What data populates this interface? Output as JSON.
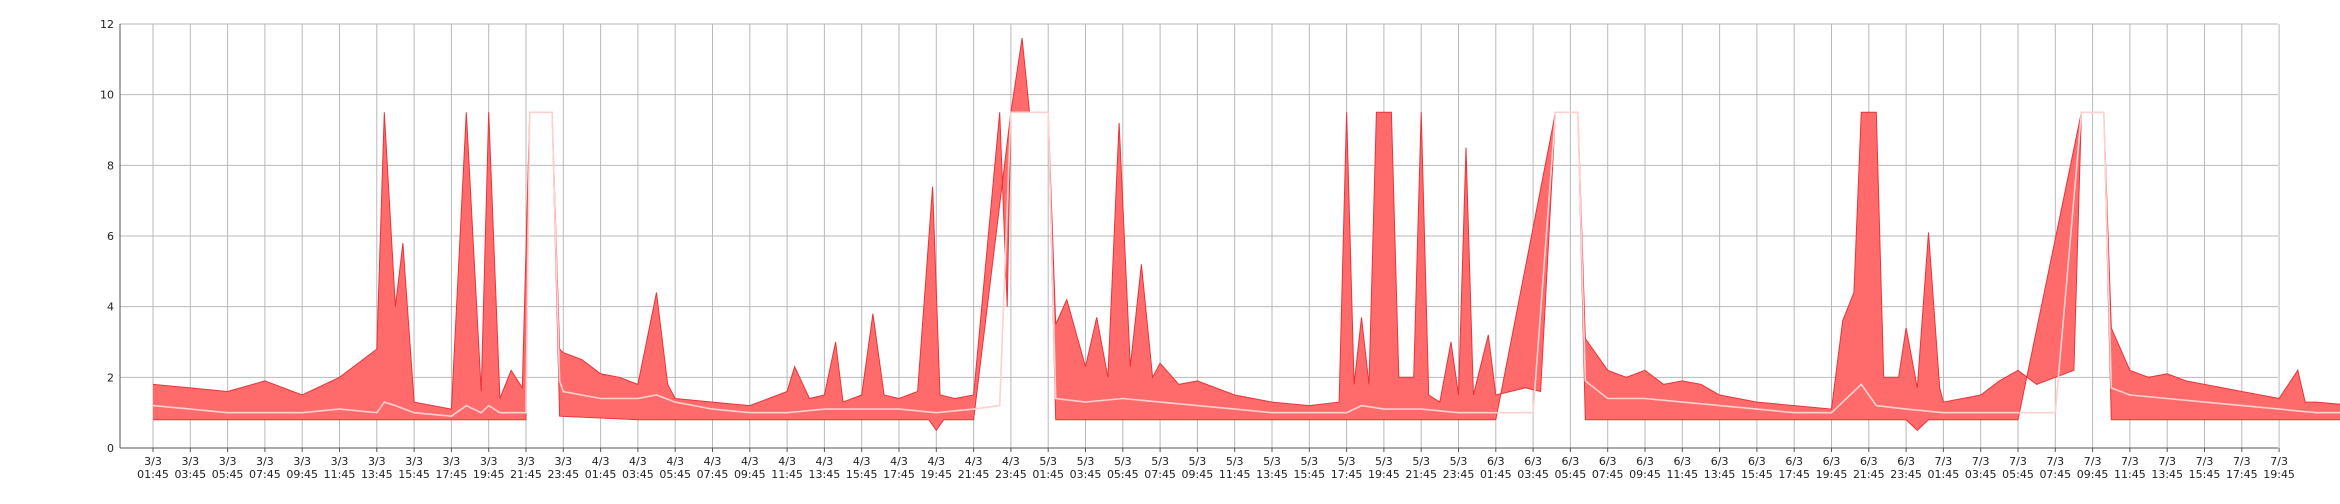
{
  "chart_data": {
    "type": "area",
    "title": "",
    "xlabel": "",
    "ylabel": "",
    "ylim": [
      0,
      12
    ],
    "y_ticks": [
      0,
      2,
      4,
      6,
      8,
      10,
      12
    ],
    "grid": true,
    "legend": "none",
    "colors": {
      "band_fill": "#ff6b6b",
      "band_stroke": "#e8343b",
      "mean_line": "#ffd0d0",
      "grid": "#b9b9b9",
      "axis": "#555555"
    },
    "x_ticks": [
      [
        "3/3",
        "01:45"
      ],
      [
        "3/3",
        "03:45"
      ],
      [
        "3/3",
        "05:45"
      ],
      [
        "3/3",
        "07:45"
      ],
      [
        "3/3",
        "09:45"
      ],
      [
        "3/3",
        "11:45"
      ],
      [
        "3/3",
        "13:45"
      ],
      [
        "3/3",
        "15:45"
      ],
      [
        "3/3",
        "17:45"
      ],
      [
        "3/3",
        "19:45"
      ],
      [
        "3/3",
        "21:45"
      ],
      [
        "3/3",
        "23:45"
      ],
      [
        "4/3",
        "01:45"
      ],
      [
        "4/3",
        "03:45"
      ],
      [
        "4/3",
        "05:45"
      ],
      [
        "4/3",
        "07:45"
      ],
      [
        "4/3",
        "09:45"
      ],
      [
        "4/3",
        "11:45"
      ],
      [
        "4/3",
        "13:45"
      ],
      [
        "4/3",
        "15:45"
      ],
      [
        "4/3",
        "17:45"
      ],
      [
        "4/3",
        "19:45"
      ],
      [
        "4/3",
        "21:45"
      ],
      [
        "4/3",
        "23:45"
      ],
      [
        "5/3",
        "01:45"
      ],
      [
        "5/3",
        "03:45"
      ],
      [
        "5/3",
        "05:45"
      ],
      [
        "5/3",
        "07:45"
      ],
      [
        "5/3",
        "09:45"
      ],
      [
        "5/3",
        "11:45"
      ],
      [
        "5/3",
        "13:45"
      ],
      [
        "5/3",
        "15:45"
      ],
      [
        "5/3",
        "17:45"
      ],
      [
        "5/3",
        "19:45"
      ],
      [
        "5/3",
        "21:45"
      ],
      [
        "5/3",
        "23:45"
      ],
      [
        "6/3",
        "01:45"
      ],
      [
        "6/3",
        "03:45"
      ],
      [
        "6/3",
        "05:45"
      ],
      [
        "6/3",
        "07:45"
      ],
      [
        "6/3",
        "09:45"
      ],
      [
        "6/3",
        "11:45"
      ],
      [
        "6/3",
        "13:45"
      ],
      [
        "6/3",
        "15:45"
      ],
      [
        "6/3",
        "17:45"
      ],
      [
        "6/3",
        "19:45"
      ],
      [
        "6/3",
        "21:45"
      ],
      [
        "6/3",
        "23:45"
      ],
      [
        "7/3",
        "01:45"
      ],
      [
        "7/3",
        "03:45"
      ],
      [
        "7/3",
        "05:45"
      ],
      [
        "7/3",
        "07:45"
      ],
      [
        "7/3",
        "09:45"
      ],
      [
        "7/3",
        "11:45"
      ],
      [
        "7/3",
        "13:45"
      ],
      [
        "7/3",
        "15:45"
      ],
      [
        "7/3",
        "17:45"
      ],
      [
        "7/3",
        "19:45"
      ]
    ],
    "series": [
      {
        "role": "max",
        "points": [
          [
            0,
            1.8
          ],
          [
            1,
            1.7
          ],
          [
            2,
            1.6
          ],
          [
            3,
            1.9
          ],
          [
            4,
            1.5
          ],
          [
            5,
            2.0
          ],
          [
            6,
            2.8
          ],
          [
            6.2,
            9.5
          ],
          [
            6.5,
            4.0
          ],
          [
            6.7,
            5.8
          ],
          [
            7,
            1.3
          ],
          [
            8,
            1.1
          ],
          [
            8.4,
            9.5
          ],
          [
            8.8,
            1.6
          ],
          [
            9,
            9.5
          ],
          [
            9.3,
            1.4
          ],
          [
            9.6,
            2.2
          ],
          [
            9.9,
            1.7
          ],
          [
            10.1,
            9.5
          ],
          [
            10.7,
            9.5
          ],
          [
            10.9,
            2.8
          ],
          [
            11,
            2.7
          ],
          [
            11.5,
            2.5
          ],
          [
            12,
            2.1
          ],
          [
            12.5,
            2.0
          ],
          [
            13,
            1.8
          ],
          [
            13.5,
            4.4
          ],
          [
            13.8,
            1.8
          ],
          [
            14,
            1.4
          ],
          [
            15,
            1.3
          ],
          [
            16,
            1.2
          ],
          [
            17,
            1.6
          ],
          [
            17.2,
            2.3
          ],
          [
            17.6,
            1.4
          ],
          [
            18,
            1.5
          ],
          [
            18.3,
            3.0
          ],
          [
            18.5,
            1.3
          ],
          [
            19,
            1.5
          ],
          [
            19.3,
            3.8
          ],
          [
            19.6,
            1.5
          ],
          [
            20,
            1.4
          ],
          [
            20.5,
            1.6
          ],
          [
            20.9,
            7.4
          ],
          [
            21.1,
            1.5
          ],
          [
            21.5,
            1.4
          ],
          [
            22,
            1.5
          ],
          [
            22.7,
            9.5
          ],
          [
            22.9,
            4.0
          ],
          [
            23.0,
            9.5
          ],
          [
            23.3,
            11.6
          ],
          [
            23.5,
            9.5
          ],
          [
            24.0,
            9.5
          ],
          [
            24.2,
            3.5
          ],
          [
            24.5,
            4.2
          ],
          [
            25,
            2.3
          ],
          [
            25.3,
            3.7
          ],
          [
            25.6,
            2.0
          ],
          [
            25.9,
            9.2
          ],
          [
            26.2,
            2.3
          ],
          [
            26.5,
            5.2
          ],
          [
            26.8,
            2.0
          ],
          [
            27,
            2.4
          ],
          [
            27.5,
            1.8
          ],
          [
            28,
            1.9
          ],
          [
            29,
            1.5
          ],
          [
            30,
            1.3
          ],
          [
            31,
            1.2
          ],
          [
            31.8,
            1.3
          ],
          [
            32.0,
            9.5
          ],
          [
            32.2,
            1.8
          ],
          [
            32.4,
            3.7
          ],
          [
            32.6,
            1.8
          ],
          [
            32.8,
            9.5
          ],
          [
            33.2,
            9.5
          ],
          [
            33.4,
            2.0
          ],
          [
            33.8,
            2.0
          ],
          [
            34.0,
            9.5
          ],
          [
            34.2,
            1.5
          ],
          [
            34.5,
            1.3
          ],
          [
            34.8,
            3.0
          ],
          [
            35.0,
            1.5
          ],
          [
            35.2,
            8.5
          ],
          [
            35.4,
            1.5
          ],
          [
            35.8,
            3.2
          ],
          [
            36,
            1.5
          ],
          [
            36.8,
            1.7
          ],
          [
            37.2,
            1.6
          ],
          [
            37.6,
            9.5
          ],
          [
            38.2,
            9.5
          ],
          [
            38.4,
            3.1
          ],
          [
            39,
            2.2
          ],
          [
            39.5,
            2.0
          ],
          [
            40,
            2.2
          ],
          [
            40.5,
            1.8
          ],
          [
            41,
            1.9
          ],
          [
            41.5,
            1.8
          ],
          [
            42,
            1.5
          ],
          [
            43,
            1.3
          ],
          [
            44,
            1.2
          ],
          [
            45,
            1.1
          ],
          [
            45.3,
            3.6
          ],
          [
            45.6,
            4.4
          ],
          [
            45.8,
            9.5
          ],
          [
            46.2,
            9.5
          ],
          [
            46.4,
            2.0
          ],
          [
            46.8,
            2.0
          ],
          [
            47.0,
            3.4
          ],
          [
            47.3,
            1.7
          ],
          [
            47.6,
            6.1
          ],
          [
            47.9,
            1.7
          ],
          [
            48,
            1.3
          ],
          [
            49,
            1.5
          ],
          [
            49.5,
            1.9
          ],
          [
            50,
            2.2
          ],
          [
            50.5,
            1.8
          ],
          [
            51,
            2.0
          ],
          [
            51.5,
            2.2
          ],
          [
            51.7,
            9.5
          ],
          [
            52.3,
            9.5
          ],
          [
            52.5,
            3.4
          ],
          [
            53,
            2.2
          ],
          [
            53.5,
            2.0
          ],
          [
            54,
            2.1
          ],
          [
            54.5,
            1.9
          ],
          [
            55,
            1.8
          ],
          [
            56,
            1.6
          ],
          [
            57,
            1.4
          ],
          [
            57.5,
            2.2
          ],
          [
            57.7,
            1.3
          ],
          [
            58,
            1.3
          ],
          [
            59,
            1.2
          ],
          [
            59.5,
            1.3
          ],
          [
            60,
            1.5
          ],
          [
            60.5,
            1.3
          ],
          [
            60.8,
            9.5
          ],
          [
            61.0,
            1.5
          ],
          [
            61.5,
            1.6
          ],
          [
            62.0,
            9.5
          ],
          [
            62.2,
            1.6
          ],
          [
            62.6,
            1.5
          ],
          [
            62.8,
            3.5
          ],
          [
            63.0,
            4.4
          ],
          [
            63.2,
            2.0
          ],
          [
            63.5,
            1.5
          ],
          [
            64,
            1.4
          ],
          [
            64.5,
            1.5
          ],
          [
            65,
            1.5
          ]
        ]
      },
      {
        "role": "mean",
        "points": [
          [
            0,
            1.2
          ],
          [
            1,
            1.1
          ],
          [
            2,
            1.0
          ],
          [
            3,
            1.0
          ],
          [
            4,
            1.0
          ],
          [
            5,
            1.1
          ],
          [
            6,
            1.0
          ],
          [
            6.2,
            1.3
          ],
          [
            6.5,
            1.2
          ],
          [
            7,
            1.0
          ],
          [
            8,
            0.9
          ],
          [
            8.4,
            1.2
          ],
          [
            8.8,
            1.0
          ],
          [
            9,
            1.2
          ],
          [
            9.3,
            1.0
          ],
          [
            10,
            1.0
          ],
          [
            10.1,
            9.5
          ],
          [
            10.7,
            9.5
          ],
          [
            10.9,
            1.9
          ],
          [
            11,
            1.6
          ],
          [
            12,
            1.4
          ],
          [
            13,
            1.4
          ],
          [
            13.5,
            1.5
          ],
          [
            14,
            1.3
          ],
          [
            15,
            1.1
          ],
          [
            16,
            1.0
          ],
          [
            17,
            1.0
          ],
          [
            18,
            1.1
          ],
          [
            19,
            1.1
          ],
          [
            20,
            1.1
          ],
          [
            21,
            1.0
          ],
          [
            22,
            1.1
          ],
          [
            22.7,
            1.2
          ],
          [
            23.0,
            9.5
          ],
          [
            24.0,
            9.5
          ],
          [
            24.2,
            1.4
          ],
          [
            25,
            1.3
          ],
          [
            26,
            1.4
          ],
          [
            27,
            1.3
          ],
          [
            28,
            1.2
          ],
          [
            29,
            1.1
          ],
          [
            30,
            1.0
          ],
          [
            31,
            1.0
          ],
          [
            32,
            1.0
          ],
          [
            32.4,
            1.2
          ],
          [
            33,
            1.1
          ],
          [
            34,
            1.1
          ],
          [
            35,
            1.0
          ],
          [
            36,
            1.0
          ],
          [
            37,
            1.0
          ],
          [
            37.6,
            9.5
          ],
          [
            38.2,
            9.5
          ],
          [
            38.4,
            1.9
          ],
          [
            39,
            1.4
          ],
          [
            40,
            1.4
          ],
          [
            41,
            1.3
          ],
          [
            42,
            1.2
          ],
          [
            43,
            1.1
          ],
          [
            44,
            1.0
          ],
          [
            45,
            1.0
          ],
          [
            45.8,
            1.8
          ],
          [
            46.2,
            1.2
          ],
          [
            47,
            1.1
          ],
          [
            48,
            1.0
          ],
          [
            49,
            1.0
          ],
          [
            50,
            1.0
          ],
          [
            51,
            1.0
          ],
          [
            51.7,
            9.5
          ],
          [
            52.3,
            9.5
          ],
          [
            52.5,
            1.7
          ],
          [
            53,
            1.5
          ],
          [
            54,
            1.4
          ],
          [
            55,
            1.3
          ],
          [
            56,
            1.2
          ],
          [
            57,
            1.1
          ],
          [
            58,
            1.0
          ],
          [
            59,
            1.0
          ],
          [
            60,
            1.0
          ],
          [
            61,
            1.0
          ],
          [
            62,
            1.0
          ],
          [
            63,
            1.0
          ],
          [
            64,
            1.0
          ],
          [
            65,
            1.0
          ]
        ]
      },
      {
        "role": "min",
        "points": [
          [
            0,
            0.8
          ],
          [
            3,
            0.8
          ],
          [
            6,
            0.8
          ],
          [
            8,
            0.8
          ],
          [
            10,
            0.8
          ],
          [
            10.1,
            9.5
          ],
          [
            10.7,
            9.5
          ],
          [
            10.9,
            0.9
          ],
          [
            13,
            0.8
          ],
          [
            16,
            0.8
          ],
          [
            19,
            0.8
          ],
          [
            20.8,
            0.8
          ],
          [
            21.0,
            0.5
          ],
          [
            21.2,
            0.8
          ],
          [
            22,
            0.8
          ],
          [
            23.0,
            9.5
          ],
          [
            24.0,
            9.5
          ],
          [
            24.2,
            0.8
          ],
          [
            27,
            0.8
          ],
          [
            30,
            0.8
          ],
          [
            33,
            0.8
          ],
          [
            36,
            0.8
          ],
          [
            37.6,
            9.5
          ],
          [
            38.2,
            9.5
          ],
          [
            38.4,
            0.8
          ],
          [
            42,
            0.8
          ],
          [
            45,
            0.8
          ],
          [
            47,
            0.8
          ],
          [
            47.3,
            0.5
          ],
          [
            47.6,
            0.8
          ],
          [
            50,
            0.8
          ],
          [
            51.7,
            9.5
          ],
          [
            52.3,
            9.5
          ],
          [
            52.5,
            0.8
          ],
          [
            56,
            0.8
          ],
          [
            60,
            0.8
          ],
          [
            65,
            0.8
          ]
        ]
      }
    ]
  }
}
